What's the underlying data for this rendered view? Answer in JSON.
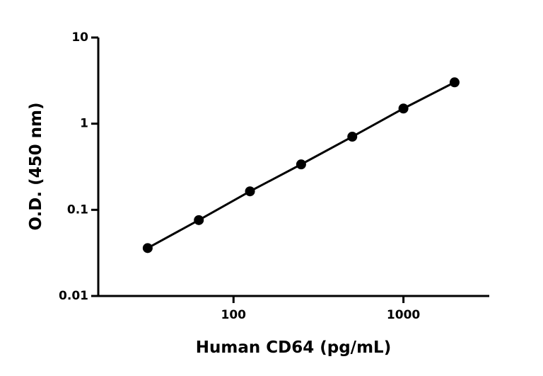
{
  "chart_data": {
    "type": "scatter",
    "x_label": "Human CD64 (pg/mL)",
    "y_label": "O.D. (450 nm)",
    "x_scale": "log",
    "y_scale": "log",
    "series": [
      {
        "color": "#000000",
        "x": [
          31.25,
          62.5,
          125,
          250,
          500,
          1000,
          2000
        ],
        "values": [
          0.036,
          0.076,
          0.164,
          0.337,
          0.706,
          1.5,
          3.02
        ]
      }
    ],
    "fit_line": true,
    "xlim": [
      16,
      3200
    ],
    "xticks": [
      100,
      1000
    ],
    "ylim": [
      0.01,
      10
    ],
    "yticks": [
      0.01,
      0.1,
      1,
      10
    ]
  }
}
